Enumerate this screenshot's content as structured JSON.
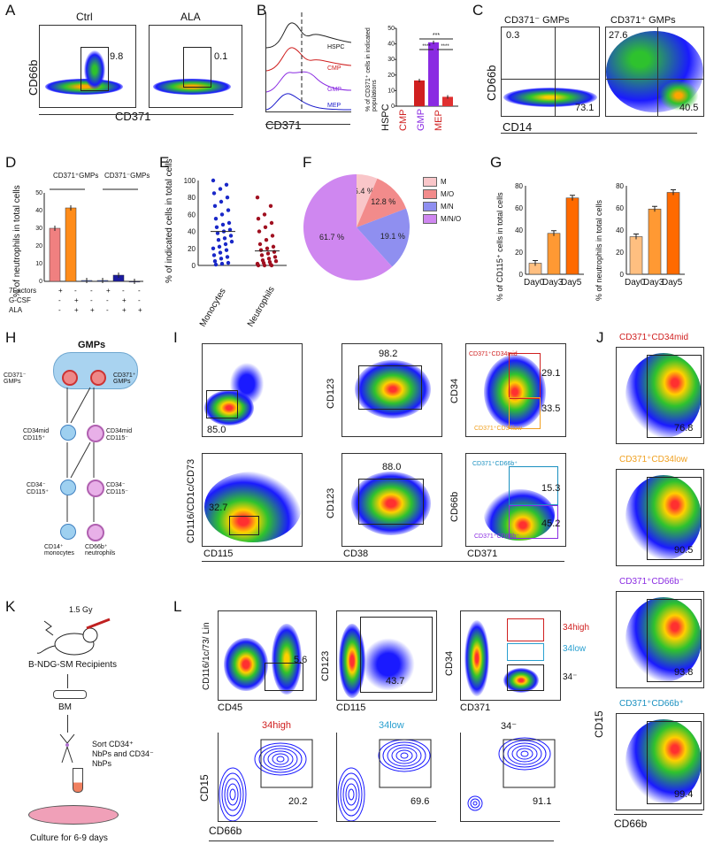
{
  "panels": {
    "A": "A",
    "B": "B",
    "C": "C",
    "D": "D",
    "E": "E",
    "F": "F",
    "G": "G",
    "H": "H",
    "I": "I",
    "J": "J",
    "K": "K",
    "L": "L"
  },
  "A": {
    "ctrl": "Ctrl",
    "ala": "ALA",
    "ylab": "CD66b",
    "xlab": "CD371",
    "ctrl_val": "9.8",
    "ala_val": "0.1"
  },
  "B": {
    "xlab": "CD371",
    "hspc": "HSPC",
    "cmp": "CMP",
    "gmp": "GMP",
    "mep": "MEP",
    "ylab": "% of CD371⁺ cells in indicated populations",
    "sig1": "***",
    "sig2": "****",
    "sig3": "****",
    "chart_data": {
      "type": "bar",
      "categories": [
        "HSPC",
        "CMP",
        "GMP",
        "MEP"
      ],
      "values": [
        0,
        16.5,
        41,
        6
      ],
      "ylim": [
        0,
        50
      ],
      "yticks": [
        "0",
        "10",
        "20",
        "30",
        "40",
        "50"
      ],
      "colors": [
        "#222222",
        "#d02020",
        "#8a2be2",
        "#e03030"
      ]
    }
  },
  "C": {
    "neg": "CD371⁻ GMPs",
    "pos": "CD371⁺ GMPs",
    "ylab": "CD66b",
    "xlab": "CD14",
    "q1": "0.3",
    "q2": "73.1",
    "q3": "27.6",
    "q4": "40.5"
  },
  "D": {
    "ylab": "% of neutrophils in total cells",
    "grp1": "CD371⁺GMPs",
    "grp2": "CD371⁻GMPs",
    "rows": [
      "7Factors",
      "G-CSF",
      "ALA"
    ],
    "signs": [
      [
        "+",
        "-",
        "-",
        "+",
        "-",
        "-"
      ],
      [
        "-",
        "+",
        "-",
        "-",
        "+",
        "-"
      ],
      [
        "-",
        "+",
        "+",
        "-",
        "+",
        "+"
      ]
    ],
    "chart_data": {
      "type": "bar",
      "values": [
        30,
        41.5,
        0.5,
        0.5,
        3.5,
        0
      ],
      "ylim": [
        0,
        50
      ],
      "yticks": [
        "0",
        "10",
        "20",
        "30",
        "40",
        "50"
      ],
      "colors": [
        "#f08080",
        "#ff8c1a",
        "#4060d0",
        "#3050d0",
        "#1a1aa0",
        "#1a1aa0"
      ]
    }
  },
  "E": {
    "ylab": "% of indicated cells in total cells",
    "cats": [
      "Monocytes",
      "Neutrophils"
    ],
    "yticks": [
      "0",
      "20",
      "40",
      "60",
      "80",
      "100"
    ],
    "chart_data": {
      "type": "scatter",
      "categories": [
        "Monocytes",
        "Neutrophils"
      ],
      "means": [
        40,
        17
      ],
      "ylim": [
        0,
        100
      ]
    }
  },
  "F": {
    "legend": [
      "M",
      "M/O",
      "M/N",
      "M/N/O"
    ],
    "chart_data": {
      "type": "pie",
      "labels": [
        "M",
        "M/O",
        "M/N",
        "M/N/O"
      ],
      "values": [
        6.4,
        12.8,
        19.1,
        61.7
      ],
      "display": [
        "6.4 %",
        "12.8 %",
        "19.1 %",
        "61.7 %"
      ],
      "colors": [
        "#f9c6c9",
        "#f28b8b",
        "#8f8ff0",
        "#cf87f0"
      ]
    }
  },
  "G": {
    "ylab1": "% of CD115⁺ cells in total cells",
    "ylab2": "% of neutrophils in total cells",
    "cats": [
      "Day0",
      "Day3",
      "Day5"
    ],
    "yticks": [
      "0",
      "20",
      "40",
      "60",
      "80"
    ],
    "chart_data": [
      {
        "type": "bar",
        "categories": [
          "Day0",
          "Day3",
          "Day5"
        ],
        "values": [
          10,
          37,
          69
        ],
        "ylim": [
          0,
          80
        ]
      },
      {
        "type": "bar",
        "categories": [
          "Day0",
          "Day3",
          "Day5"
        ],
        "values": [
          34,
          59,
          74
        ],
        "ylim": [
          0,
          80
        ]
      }
    ]
  },
  "H": {
    "top": "GMPs",
    "neg": "CD371⁻ GMPs",
    "pos": "CD371⁺ GMPs",
    "c1": "CD34mid CD115⁺",
    "c2": "CD34mid CD115⁻",
    "c3": "CD34⁻ CD115⁺",
    "c4": "CD34⁻ CD115⁻",
    "c5": "CD14⁺ monocytes",
    "c6": "CD66b⁺ neutrophils"
  },
  "I": {
    "ylab1": "CD116/CD1c/CD73",
    "xlab1": "CD115",
    "ylab2": "CD123",
    "xlab2": "CD38",
    "ylab3": "CD34",
    "xlab3": "CD371",
    "ylab4": "CD66b",
    "v1": "85.0",
    "v2": "98.2",
    "v3": "29.1",
    "v4": "33.5",
    "v5": "32.7",
    "v6": "88.0",
    "v7": "15.3",
    "v8": "45.2",
    "g1": "CD371⁺CD34mid",
    "g2": "CD371⁺CD34low",
    "g3": "CD371⁺CD66b⁺",
    "g4": "CD371⁺CD66b⁻"
  },
  "J": {
    "t1": "CD371⁺CD34mid",
    "t2": "CD371⁺CD34low",
    "t3": "CD371⁺CD66b⁻",
    "t4": "CD371⁺CD66b⁺",
    "v1": "76.8",
    "v2": "90.5",
    "v3": "93.8",
    "v4": "99.4",
    "ylab": "CD15",
    "xlab": "CD66b"
  },
  "K": {
    "dose": "1.5 Gy",
    "mice": "B-NDG-SM Recipients",
    "bm": "BM",
    "sort": "Sort CD34⁺ NbPs and CD34⁻ NbPs",
    "culture": "Culture for 6-9 days"
  },
  "L": {
    "ylab1": "CD116/1c/73/ Lin",
    "xlab1": "CD45",
    "v1": "5.6",
    "ylab2": "CD123",
    "xlab2": "CD115",
    "v2": "43.7",
    "ylab3": "CD34",
    "xlab3": "CD371",
    "h": "34high",
    "l": "34low",
    "n": "34⁻",
    "b1": "34high",
    "b2": "34low",
    "b3": "34⁻",
    "v3": "20.2",
    "v4": "69.6",
    "v5": "91.1",
    "ylab4": "CD15",
    "xlab4": "CD66b"
  }
}
